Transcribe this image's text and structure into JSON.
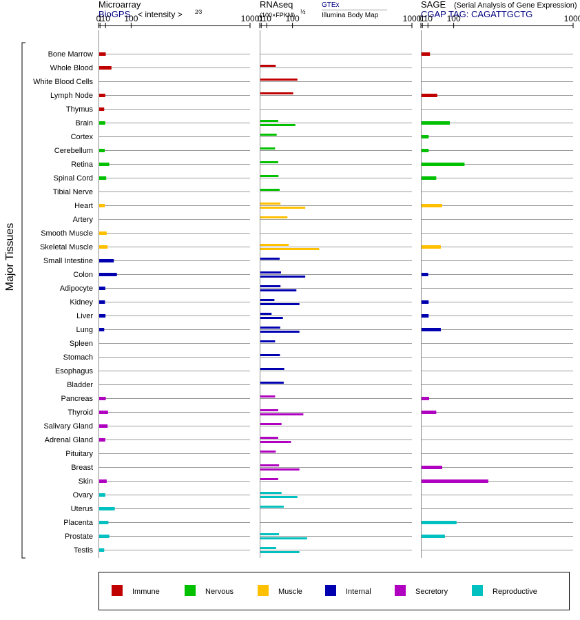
{
  "chart_data": {
    "type": "bar",
    "orientation": "horizontal",
    "y_title": "Major Tissues",
    "categories": [
      "Bone Marrow",
      "Whole Blood",
      "White Blood Cells",
      "Lymph Node",
      "Thymus",
      "Brain",
      "Cortex",
      "Cerebellum",
      "Retina",
      "Spinal Cord",
      "Tibial Nerve",
      "Heart",
      "Artery",
      "Smooth Muscle",
      "Skeletal Muscle",
      "Small Intestine",
      "Colon",
      "Adipocyte",
      "Kidney",
      "Liver",
      "Lung",
      "Spleen",
      "Stomach",
      "Esophagus",
      "Bladder",
      "Pancreas",
      "Thyroid",
      "Salivary Gland",
      "Adrenal Gland",
      "Pituitary",
      "Breast",
      "Skin",
      "Ovary",
      "Uterus",
      "Placenta",
      "Prostate",
      "Testis"
    ],
    "category_groups": [
      "Immune",
      "Immune",
      "Immune",
      "Immune",
      "Immune",
      "Nervous",
      "Nervous",
      "Nervous",
      "Nervous",
      "Nervous",
      "Nervous",
      "Muscle",
      "Muscle",
      "Muscle",
      "Muscle",
      "Internal",
      "Internal",
      "Internal",
      "Internal",
      "Internal",
      "Internal",
      "Internal",
      "Internal",
      "Internal",
      "Internal",
      "Secretory",
      "Secretory",
      "Secretory",
      "Secretory",
      "Secretory",
      "Secretory",
      "Secretory",
      "Reproductive",
      "Reproductive",
      "Reproductive",
      "Reproductive",
      "Reproductive"
    ],
    "ticks": [
      "0",
      "1",
      "10",
      "100",
      "1000"
    ],
    "panels": [
      {
        "title": "Microarray",
        "subtitle_left": "BioGPS",
        "subtitle_right": "< intensity >",
        "subtitle_right_sup": "2⁄3",
        "xlim": [
          0,
          1000
        ],
        "values": [
          9,
          23,
          null,
          8,
          6,
          8,
          null,
          7,
          17,
          10,
          null,
          7,
          null,
          11,
          13,
          30,
          40,
          8,
          7.5,
          8.5,
          6,
          null,
          null,
          null,
          null,
          9,
          14,
          13,
          8,
          null,
          null,
          11,
          8,
          33,
          15,
          17,
          6
        ]
      },
      {
        "title": "RNAseq",
        "title_sup": "½",
        "subtitle_left": "(100×FPKM)",
        "subtitle_right_top": "GTEx",
        "subtitle_right_bottom": "Illumina Body Map",
        "xlim": [
          0,
          1000
        ],
        "series": [
          {
            "name": "GTEx",
            "values": [
              null,
              32,
              120,
              100,
              null,
              40,
              35,
              30,
              40,
              41,
              45,
              48,
              75,
              null,
              80,
              45,
              50,
              48,
              28,
              20,
              47,
              30,
              46,
              62,
              60,
              30,
              40,
              52,
              40,
              32,
              43,
              40,
              52,
              60,
              null,
              43,
              33
            ]
          },
          {
            "name": "Illumina Body Map",
            "values": [
              null,
              null,
              null,
              null,
              null,
              110,
              null,
              null,
              null,
              null,
              null,
              160,
              null,
              null,
              240,
              null,
              160,
              115,
              130,
              57,
              130,
              null,
              null,
              null,
              null,
              null,
              150,
              null,
              90,
              null,
              130,
              null,
              120,
              null,
              null,
              170,
              130
            ]
          }
        ]
      },
      {
        "title": "SAGE",
        "title_note": "(Serial Analysis of Gene Expression)",
        "subtitle_left": "CGAP TAG: CAGATTGCTG",
        "xlim": [
          0,
          1000
        ],
        "values": [
          13,
          null,
          null,
          33,
          null,
          80,
          10,
          10,
          150,
          30,
          null,
          50,
          null,
          null,
          45,
          null,
          9,
          null,
          10,
          10,
          45,
          null,
          null,
          null,
          null,
          11,
          30,
          null,
          null,
          null,
          50,
          290,
          null,
          null,
          110,
          60,
          null
        ]
      }
    ],
    "legend": {
      "placement": "bottom",
      "items": [
        {
          "label": "Immune",
          "color": "#c00000"
        },
        {
          "label": "Nervous",
          "color": "#00c000"
        },
        {
          "label": "Muscle",
          "color": "#ffc000"
        },
        {
          "label": "Internal",
          "color": "#0000b0"
        },
        {
          "label": "Secretory",
          "color": "#b000c0"
        },
        {
          "label": "Reproductive",
          "color": "#00c0c0"
        }
      ]
    },
    "colors": {
      "subtitle_link": "#000080",
      "axis": "#888888",
      "gridline": "#999999"
    }
  }
}
